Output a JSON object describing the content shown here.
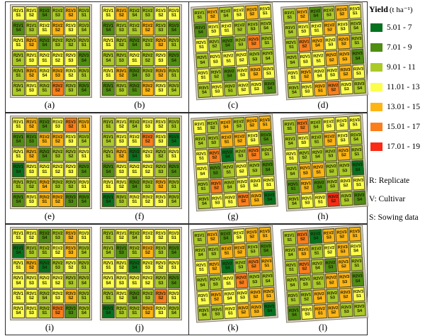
{
  "chart_data": {
    "type": "heatmap",
    "description": "Twelve field-trial plot maps (a-l), each a 6x6 grid of experimental plots colored by yield class",
    "legend": {
      "title": "Yield",
      "unit": "(t ha⁻¹)",
      "classes": [
        {
          "code": "DG",
          "label": "5.01 - 7",
          "color": "#06721f"
        },
        {
          "code": "G",
          "label": "7.01 - 9",
          "color": "#4f8e12"
        },
        {
          "code": "YG",
          "label": "9.01 - 11",
          "color": "#abca28"
        },
        {
          "code": "Y",
          "label": "11.01 - 13",
          "color": "#fbfe4a"
        },
        {
          "code": "A",
          "label": "13.01 - 15",
          "color": "#fdb515"
        },
        {
          "code": "O",
          "label": "15.01 - 17",
          "color": "#fb7e1d"
        },
        {
          "code": "R",
          "label": "17.01 - 19",
          "color": "#fb2a14"
        }
      ]
    },
    "notes": [
      "R: Replicate",
      "V: Cultivar",
      "S: Sowing data"
    ],
    "cell_labels": [
      "R1V1 S1",
      "R1V1 S2",
      "R1V2 S4",
      "R1V2 S3",
      "R1V3 S2",
      "R1V3 S1",
      "R1V1 S4",
      "R1V1 S3",
      "R1V2 S1",
      "R1V2 S2",
      "R1V3 S3",
      "R1V3 S4",
      "R2V1 S1",
      "R2V1 S2",
      "R2V2 S4",
      "R2V2 S3",
      "R2V3 S2",
      "R2V3 S1",
      "R2V1 S4",
      "R2V1 S3",
      "R2V2 S1",
      "R2V2 S2",
      "R2V3 S3",
      "R2V3 S4",
      "R3V1 S1",
      "R3V1 S2",
      "R3V2 S4",
      "R3V2 S3",
      "R3V3 S2",
      "R3V3 S1",
      "R3V1 S4",
      "R3V1 S3",
      "R3V2 S1",
      "R3V2 S2",
      "R3V3 S3",
      "R3V3 S4"
    ],
    "panels": [
      {
        "caption": "(a)",
        "cells": [
          "Y",
          "Y",
          "G",
          "YG",
          "A",
          "YG",
          "G",
          "YG",
          "Y",
          "A",
          "Y",
          "YG",
          "Y",
          "A",
          "G",
          "YG",
          "YG",
          "YG",
          "YG",
          "Y",
          "Y",
          "Y",
          "Y",
          "G",
          "YG",
          "A",
          "Y",
          "A",
          "Y",
          "YG",
          "YG",
          "Y",
          "YG",
          "O",
          "YG",
          "G"
        ]
      },
      {
        "caption": "(b)",
        "cells": [
          "Y",
          "A",
          "YG",
          "YG",
          "Y",
          "Y",
          "G",
          "YG",
          "YG",
          "A",
          "YG",
          "G",
          "Y",
          "YG",
          "G",
          "YG",
          "A",
          "YG",
          "YG",
          "YG",
          "Y",
          "YG",
          "Y",
          "G",
          "Y",
          "A",
          "G",
          "YG",
          "A",
          "YG",
          "G",
          "YG",
          "G",
          "A",
          "Y",
          "YG"
        ]
      },
      {
        "caption": "(c)",
        "cells": [
          "YG",
          "A",
          "YG",
          "Y",
          "A",
          "Y",
          "G",
          "Y",
          "Y",
          "YG",
          "YG",
          "YG",
          "Y",
          "YG",
          "G",
          "YG",
          "O",
          "YG",
          "YG",
          "Y",
          "Y",
          "Y",
          "YG",
          "YG",
          "Y",
          "YG",
          "G",
          "Y",
          "A",
          "Y",
          "YG",
          "Y",
          "YG",
          "Y",
          "Y",
          "G"
        ]
      },
      {
        "caption": "(d)",
        "cells": [
          "YG",
          "A",
          "G",
          "YG",
          "A",
          "Y",
          "YG",
          "Y",
          "Y",
          "A",
          "Y",
          "YG",
          "YG",
          "O",
          "A",
          "Y",
          "A",
          "YG",
          "YG",
          "Y",
          "Y",
          "A",
          "A",
          "G",
          "Y",
          "A",
          "Y",
          "Y",
          "A",
          "Y",
          "YG",
          "Y",
          "A",
          "O",
          "Y",
          "YG"
        ]
      },
      {
        "caption": "(e)",
        "cells": [
          "Y",
          "A",
          "G",
          "Y",
          "O",
          "A",
          "G",
          "G",
          "A",
          "A",
          "Y",
          "YG",
          "Y",
          "A",
          "G",
          "YG",
          "YG",
          "Y",
          "DG",
          "Y",
          "Y",
          "Y",
          "Y",
          "G",
          "YG",
          "YG",
          "A",
          "YG",
          "YG",
          "Y",
          "G",
          "Y",
          "A",
          "A",
          "G",
          "G"
        ]
      },
      {
        "caption": "(f)",
        "cells": [
          "YG",
          "Y",
          "YG",
          "Y",
          "Y",
          "YG",
          "YG",
          "Y",
          "Y",
          "O",
          "Y",
          "DG",
          "YG",
          "A",
          "DG",
          "Y",
          "YG",
          "Y",
          "G",
          "Y",
          "Y",
          "Y",
          "YG",
          "G",
          "Y",
          "Y",
          "G",
          "YG",
          "A",
          "YG",
          "DG",
          "YG",
          "Y",
          "Y",
          "Y",
          "YG"
        ]
      },
      {
        "caption": "(g)",
        "cells": [
          "Y",
          "YG",
          "A",
          "YG",
          "A",
          "A",
          "YG",
          "YG",
          "A",
          "A",
          "Y",
          "G",
          "Y",
          "O",
          "DG",
          "YG",
          "O",
          "YG",
          "Y",
          "G",
          "YG",
          "Y",
          "YG",
          "G",
          "YG",
          "O",
          "YG",
          "Y",
          "Y",
          "Y",
          "YG",
          "Y",
          "Y",
          "O",
          "A",
          "DG"
        ]
      },
      {
        "caption": "(h)",
        "cells": [
          "YG",
          "O",
          "YG",
          "Y",
          "Y",
          "Y",
          "YG",
          "Y",
          "YG",
          "A",
          "Y",
          "YG",
          "Y",
          "YG",
          "YG",
          "YG",
          "A",
          "YG",
          "YG",
          "A",
          "A",
          "YG",
          "YG",
          "DG",
          "G",
          "A",
          "G",
          "YG",
          "Y",
          "Y",
          "YG",
          "Y",
          "Y",
          "R",
          "YG",
          "G"
        ]
      },
      {
        "caption": "(i)",
        "cells": [
          "Y",
          "Y",
          "G",
          "YG",
          "A",
          "Y",
          "DG",
          "YG",
          "YG",
          "Y",
          "A",
          "YG",
          "Y",
          "A",
          "DG",
          "YG",
          "Y",
          "YG",
          "Y",
          "Y",
          "Y",
          "Y",
          "YG",
          "YG",
          "Y",
          "Y",
          "YG",
          "Y",
          "A",
          "YG",
          "Y",
          "Y",
          "YG",
          "O",
          "G",
          "YG"
        ]
      },
      {
        "caption": "(j)",
        "cells": [
          "YG",
          "Y",
          "YG",
          "Y",
          "Y",
          "Y",
          "YG",
          "G",
          "YG",
          "A",
          "YG",
          "G",
          "Y",
          "Y",
          "DG",
          "Y",
          "Y",
          "Y",
          "Y",
          "Y",
          "Y",
          "Y",
          "YG",
          "G",
          "YG",
          "Y",
          "G",
          "YG",
          "O",
          "Y",
          "DG",
          "YG",
          "YG",
          "A",
          "Y",
          "YG"
        ]
      },
      {
        "caption": "(k)",
        "cells": [
          "YG",
          "A",
          "G",
          "Y",
          "A",
          "A",
          "YG",
          "YG",
          "A",
          "A",
          "YG",
          "G",
          "Y",
          "A",
          "DG",
          "YG",
          "O",
          "A",
          "YG",
          "YG",
          "Y",
          "O",
          "YG",
          "YG",
          "Y",
          "A",
          "Y",
          "Y",
          "A",
          "A",
          "YG",
          "YG",
          "Y",
          "A",
          "A",
          "DG"
        ]
      },
      {
        "caption": "(l)",
        "cells": [
          "YG",
          "O",
          "DG",
          "A",
          "A",
          "A",
          "YG",
          "A",
          "YG",
          "Y",
          "A",
          "Y",
          "YG",
          "O",
          "YG",
          "G",
          "A",
          "YG",
          "YG",
          "YG",
          "YG",
          "A",
          "A",
          "G",
          "YG",
          "YG",
          "A",
          "YG",
          "A",
          "Y",
          "G",
          "Y",
          "A",
          "A",
          "YG",
          "YG"
        ]
      }
    ]
  }
}
